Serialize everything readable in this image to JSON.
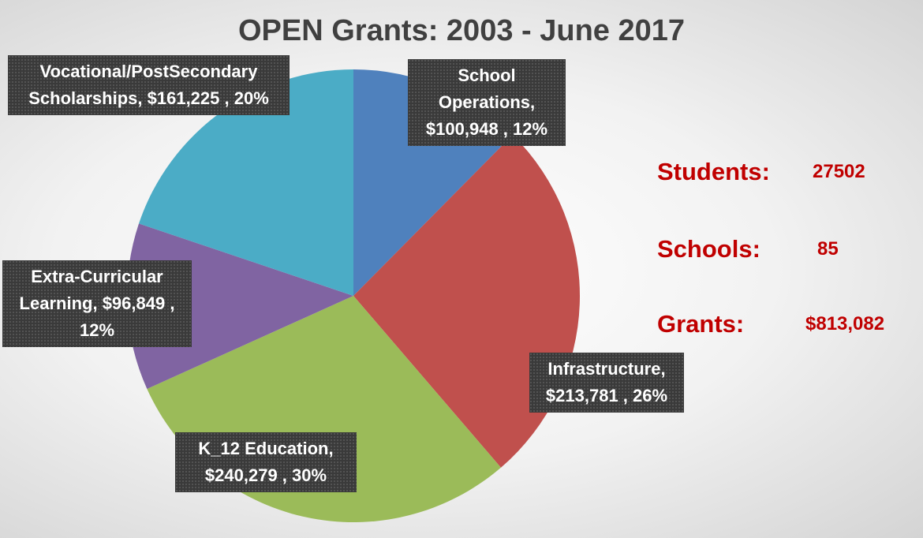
{
  "chart_data": {
    "type": "pie",
    "title": "OPEN Grants: 2003 - June 2017",
    "categories": [
      "School Operations,",
      "Infrastructure,",
      "K_12 Education,",
      "Extra-Curricular Learning,",
      "Vocational/PostSecondary Scholarships,"
    ],
    "values": [
      100948,
      213781,
      240279,
      96849,
      161225
    ],
    "value_labels": [
      "$100,948 ,",
      "$213,781 ,",
      "$240,279 ,",
      "$96,849 ,",
      "$161,225 ,"
    ],
    "percents": [
      12,
      26,
      30,
      12,
      20
    ],
    "percent_labels": [
      "12%",
      "26%",
      "30%",
      "12%",
      "20%"
    ],
    "colors": [
      "#4f81bd",
      "#c0504d",
      "#9bbb59",
      "#8064a2",
      "#4bacc6"
    ]
  },
  "stats": [
    {
      "label": "Students:",
      "value": 27502
    },
    {
      "label": "Schools:",
      "value": 85
    },
    {
      "label": "Grants:",
      "value": 813082,
      "value_label": "$813,082"
    }
  ]
}
